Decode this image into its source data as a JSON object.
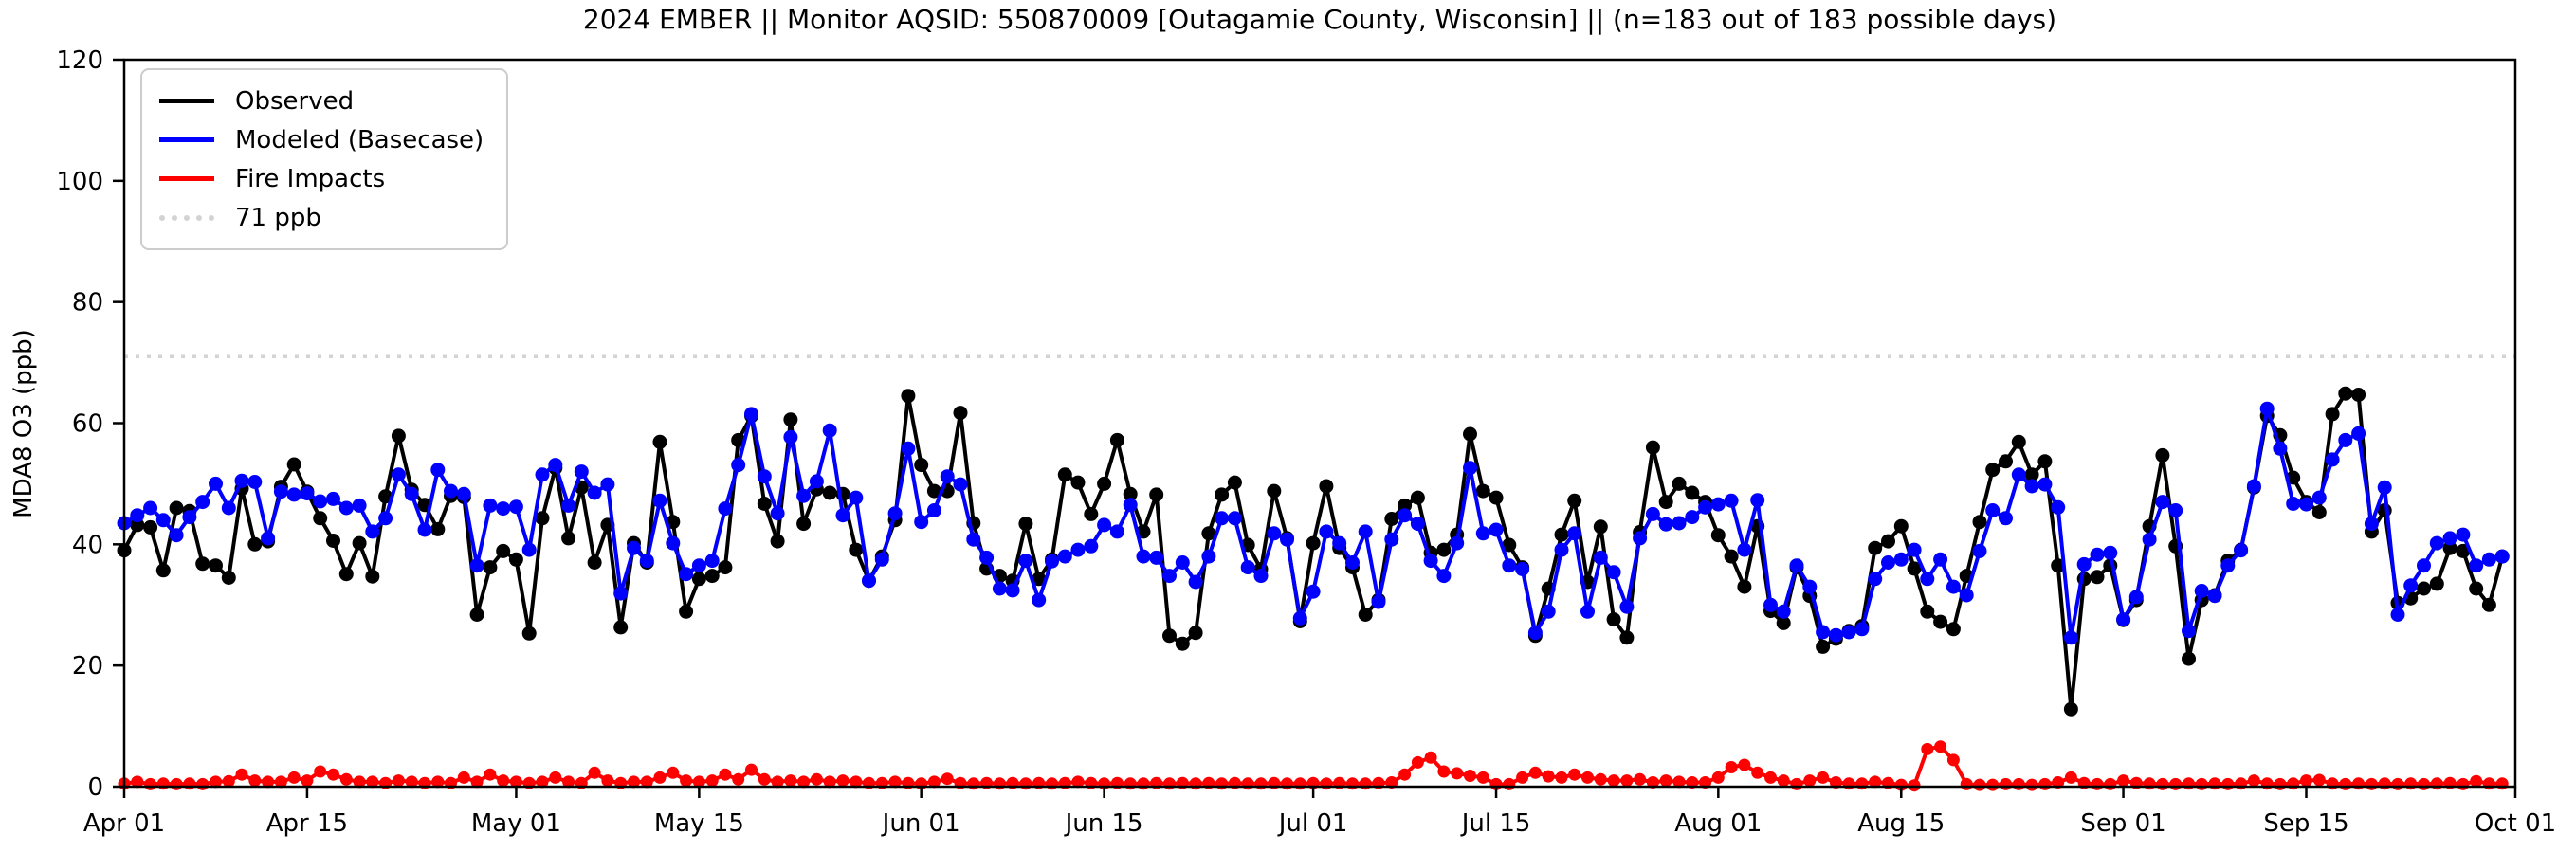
{
  "colors": {
    "observed": "#000000",
    "modeled": "#0000ff",
    "fire": "#ff0000",
    "threshold": "#d3d3d3",
    "axis": "#000000",
    "legend_border": "#cccccc"
  },
  "legend": {
    "entries": [
      {
        "label": "Observed",
        "color": "#000000",
        "style": "solid"
      },
      {
        "label": "Modeled (Basecase)",
        "color": "#0000ff",
        "style": "solid"
      },
      {
        "label": "Fire Impacts",
        "color": "#ff0000",
        "style": "solid"
      },
      {
        "label": "71 ppb",
        "color": "#d3d3d3",
        "style": "dotted"
      }
    ]
  },
  "chart_data": {
    "type": "line",
    "title": "2024 EMBER || Monitor AQSID: 550870009 [Outagamie County, Wisconsin] || (n=183 out of 183 possible days)",
    "xlabel": "",
    "ylabel": "MDA8 O3 (ppb)",
    "ylim": [
      0,
      120
    ],
    "y_ticks": [
      0,
      20,
      40,
      60,
      80,
      100,
      120
    ],
    "x_range_days": [
      0,
      183
    ],
    "x_ticks": [
      {
        "day": 0,
        "label": "Apr 01"
      },
      {
        "day": 14,
        "label": "Apr 15"
      },
      {
        "day": 30,
        "label": "May 01"
      },
      {
        "day": 44,
        "label": "May 15"
      },
      {
        "day": 61,
        "label": "Jun 01"
      },
      {
        "day": 75,
        "label": "Jun 15"
      },
      {
        "day": 91,
        "label": "Jul 01"
      },
      {
        "day": 105,
        "label": "Jul 15"
      },
      {
        "day": 122,
        "label": "Aug 01"
      },
      {
        "day": 136,
        "label": "Aug 15"
      },
      {
        "day": 153,
        "label": "Sep 01"
      },
      {
        "day": 167,
        "label": "Sep 15"
      },
      {
        "day": 183,
        "label": "Oct 01"
      }
    ],
    "threshold": {
      "value": 71,
      "label": "71 ppb"
    },
    "grid": false,
    "legend_position": "upper-left",
    "series": [
      {
        "name": "Observed",
        "color": "#000000",
        "marker": "o",
        "values": [
          39,
          43.2,
          42.8,
          35.7,
          46,
          45.5,
          36.8,
          36.5,
          34.5,
          49.2,
          40,
          40.5,
          49.5,
          53.2,
          48.7,
          44.3,
          40.6,
          35.1,
          40.2,
          34.7,
          47.9,
          57.9,
          49,
          46.5,
          42.5,
          48,
          47.8,
          28.4,
          36.2,
          38.9,
          37.5,
          25.3,
          44.3,
          52.6,
          41,
          49.4,
          37,
          43.2,
          26.3,
          40.2,
          37,
          56.9,
          43.7,
          28.9,
          34.3,
          34.8,
          36.2,
          57.2,
          61.2,
          46.7,
          40.5,
          60.6,
          43.4,
          49.1,
          48.5,
          48.3,
          39.1,
          34,
          38,
          44,
          64.5,
          53.1,
          48.8,
          48.8,
          61.7,
          43.5,
          36,
          34.8,
          34,
          43.4,
          34.3,
          37.5,
          51.5,
          50.2,
          45,
          50,
          57.2,
          48.3,
          42.1,
          48.2,
          24.9,
          23.6,
          25.4,
          41.8,
          48.2,
          50.2,
          39.9,
          35.9,
          48.8,
          41,
          27.3,
          40.2,
          49.6,
          39.4,
          36.2,
          28.4,
          30.8,
          44.2,
          46.4,
          47.7,
          38.6,
          39.1,
          41.6,
          58.2,
          48.8,
          47.7,
          39.9,
          36.2,
          24.9,
          32.7,
          41.6,
          47.2,
          33.8,
          42.9,
          27.6,
          24.6,
          42,
          56,
          47,
          50,
          48.5,
          47,
          41.5,
          38,
          33,
          43,
          29,
          27,
          36.2,
          31.5,
          23.1,
          24.4,
          25.7,
          26.5,
          39.4,
          40.5,
          43,
          36,
          28.9,
          27.2,
          26,
          34.8,
          43.7,
          52.3,
          53.7,
          56.9,
          51.5,
          53.7,
          36.5,
          12.8,
          34.3,
          34.6,
          36.5,
          27.5,
          30.8,
          43,
          54.7,
          39.7,
          21.1,
          30.8,
          31.6,
          37.3,
          39.1,
          49.4,
          61.2,
          58,
          51,
          47,
          45.3,
          61.5,
          64.9,
          64.7,
          42.1,
          45.6,
          30.3,
          31.1,
          32.7,
          33.5,
          39.4,
          38.9,
          32.7,
          30,
          38
        ]
      },
      {
        "name": "Modeled (Basecase)",
        "color": "#0000ff",
        "marker": "o",
        "values": [
          43.5,
          44.8,
          46,
          44,
          41.5,
          44.5,
          47,
          50,
          46,
          50.5,
          50.3,
          41,
          48.7,
          48.2,
          48.4,
          47.1,
          47.5,
          46,
          46.4,
          42.1,
          44.3,
          51.5,
          48.3,
          42.4,
          52.3,
          48.8,
          48.3,
          36.5,
          46.4,
          45.9,
          46.2,
          39.1,
          51.5,
          53.1,
          46.4,
          52,
          48.5,
          49.9,
          31.9,
          39.4,
          37.3,
          47.2,
          40.2,
          35.1,
          36.5,
          37.3,
          45.9,
          53.1,
          61.5,
          51.2,
          45.1,
          57.7,
          48,
          50.4,
          58.8,
          44.8,
          47.7,
          34,
          37.5,
          45.1,
          55.8,
          43.7,
          45.6,
          51.2,
          49.9,
          40.8,
          37.8,
          32.7,
          32.4,
          37.3,
          30.8,
          37.2,
          38,
          39.1,
          39.7,
          43.2,
          42.1,
          46.5,
          38,
          37.8,
          34.8,
          37,
          33.8,
          38,
          44.3,
          44.3,
          36.2,
          34.8,
          41.8,
          40.8,
          27.8,
          32.2,
          42.1,
          40.2,
          37,
          42.1,
          30.5,
          40.8,
          44.8,
          43.4,
          37.3,
          34.8,
          40.2,
          52.6,
          41.8,
          42.4,
          36.5,
          35.9,
          25.4,
          28.9,
          39.1,
          41.8,
          28.9,
          37.8,
          35.4,
          29.7,
          41,
          45,
          43.3,
          43.5,
          44.5,
          46.1,
          46.6,
          47.2,
          39.1,
          47.3,
          30,
          28.9,
          36.5,
          33,
          25.5,
          25,
          25.5,
          26,
          34.3,
          37,
          37.5,
          39.1,
          34.3,
          37.5,
          33,
          31.6,
          38.9,
          45.6,
          44.3,
          51.5,
          49.6,
          49.9,
          46.1,
          24.6,
          36.7,
          38.3,
          38.6,
          27.6,
          31.3,
          40.8,
          47,
          45.6,
          25.7,
          32.3,
          31.5,
          36.5,
          39,
          49.6,
          62.4,
          55.8,
          46.7,
          46.6,
          47.7,
          54,
          57.2,
          58.3,
          43.4,
          49.4,
          28.4,
          33.2,
          36.5,
          40.2,
          41,
          41.6,
          36.5,
          37.5,
          38
        ]
      },
      {
        "name": "Fire Impacts",
        "color": "#ff0000",
        "marker": "o",
        "values": [
          0.5,
          0.8,
          0.4,
          0.5,
          0.4,
          0.5,
          0.4,
          0.8,
          0.9,
          2,
          1,
          0.8,
          0.8,
          1.5,
          1,
          2.5,
          2,
          1.2,
          0.8,
          0.8,
          0.6,
          1,
          0.8,
          0.6,
          0.8,
          0.6,
          1.5,
          0.8,
          2,
          1,
          0.8,
          0.6,
          0.8,
          1.5,
          0.8,
          0.6,
          2.3,
          1,
          0.6,
          0.8,
          0.8,
          1.5,
          2.3,
          1,
          0.8,
          1,
          2,
          1.2,
          2.8,
          1.2,
          0.8,
          1,
          0.8,
          1.2,
          0.8,
          1,
          0.8,
          0.6,
          0.6,
          0.8,
          0.6,
          0.5,
          0.8,
          1.3,
          0.6,
          0.5,
          0.6,
          0.5,
          0.6,
          0.5,
          0.6,
          0.5,
          0.6,
          0.8,
          0.6,
          0.5,
          0.6,
          0.5,
          0.5,
          0.6,
          0.5,
          0.6,
          0.5,
          0.6,
          0.5,
          0.6,
          0.5,
          0.5,
          0.6,
          0.5,
          0.5,
          0.6,
          0.5,
          0.6,
          0.5,
          0.5,
          0.6,
          0.7,
          2,
          4,
          4.8,
          2.5,
          2.2,
          1.8,
          1.5,
          0.4,
          0.4,
          1.5,
          2.3,
          1.7,
          1.5,
          2,
          1.5,
          1.2,
          1,
          1,
          1.2,
          0.7,
          1,
          0.8,
          0.7,
          0.7,
          1.5,
          3.2,
          3.6,
          2.3,
          1.5,
          1,
          0.4,
          1,
          1.5,
          0.7,
          0.5,
          0.5,
          0.8,
          0.6,
          0.3,
          0.2,
          6.2,
          6.6,
          4.4,
          0.4,
          0.3,
          0.3,
          0.4,
          0.4,
          0.3,
          0.4,
          0.7,
          1.5,
          0.6,
          0.4,
          0.4,
          1,
          0.6,
          0.5,
          0.4,
          0.4,
          0.5,
          0.4,
          0.5,
          0.4,
          0.5,
          1,
          0.5,
          0.4,
          0.5,
          1,
          1.1,
          0.5,
          0.4,
          0.5,
          0.4,
          0.5,
          0.4,
          0.5,
          0.4,
          0.5,
          0.6,
          0.4,
          0.9,
          0.5,
          0.5
        ]
      }
    ]
  }
}
